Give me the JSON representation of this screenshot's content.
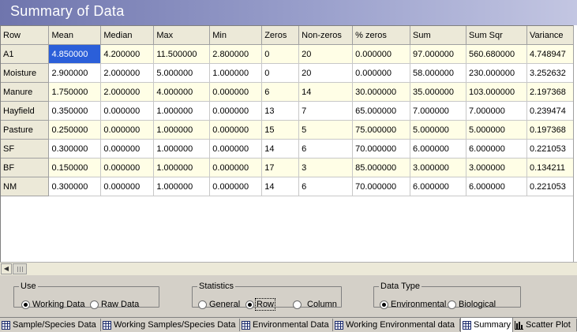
{
  "window": {
    "title": "Summary of Data"
  },
  "table": {
    "columns": [
      "Row",
      "Mean",
      "Median",
      "Max",
      "Min",
      "Zeros",
      "Non-zeros",
      "% zeros",
      "Sum",
      "Sum Sqr",
      "Variance"
    ],
    "rows": [
      [
        "A1",
        "4.850000",
        "4.200000",
        "11.500000",
        "2.800000",
        "0",
        "20",
        "0.000000",
        "97.000000",
        "560.680000",
        "4.748947"
      ],
      [
        "Moisture",
        "2.900000",
        "2.000000",
        "5.000000",
        "1.000000",
        "0",
        "20",
        "0.000000",
        "58.000000",
        "230.000000",
        "3.252632"
      ],
      [
        "Manure",
        "1.750000",
        "2.000000",
        "4.000000",
        "0.000000",
        "6",
        "14",
        "30.000000",
        "35.000000",
        "103.000000",
        "2.197368"
      ],
      [
        "Hayfield",
        "0.350000",
        "0.000000",
        "1.000000",
        "0.000000",
        "13",
        "7",
        "65.000000",
        "7.000000",
        "7.000000",
        "0.239474"
      ],
      [
        "Pasture",
        "0.250000",
        "0.000000",
        "1.000000",
        "0.000000",
        "15",
        "5",
        "75.000000",
        "5.000000",
        "5.000000",
        "0.197368"
      ],
      [
        "SF",
        "0.300000",
        "0.000000",
        "1.000000",
        "0.000000",
        "14",
        "6",
        "70.000000",
        "6.000000",
        "6.000000",
        "0.221053"
      ],
      [
        "BF",
        "0.150000",
        "0.000000",
        "1.000000",
        "0.000000",
        "17",
        "3",
        "85.000000",
        "3.000000",
        "3.000000",
        "0.134211"
      ],
      [
        "NM",
        "0.300000",
        "0.000000",
        "1.000000",
        "0.000000",
        "14",
        "6",
        "70.000000",
        "6.000000",
        "6.000000",
        "0.221053"
      ]
    ]
  },
  "options": {
    "use": {
      "legend": "Use",
      "working": "Working Data",
      "raw": "Raw Data",
      "selected": "working"
    },
    "statistics": {
      "legend": "Statistics",
      "general": "General",
      "row": "Row",
      "column": "Column",
      "selected": "row"
    },
    "datatype": {
      "legend": "Data Type",
      "environmental": "Environmental",
      "biological": "Biological",
      "selected": "environmental"
    }
  },
  "tabs": [
    {
      "label": "Sample/Species Data",
      "icon": "grid-icon"
    },
    {
      "label": "Working Samples/Species Data",
      "icon": "grid-icon"
    },
    {
      "label": "Environmental Data",
      "icon": "grid-icon"
    },
    {
      "label": "Working Environmental data",
      "icon": "grid-icon"
    },
    {
      "label": "Summary",
      "icon": "grid-icon",
      "active": true
    },
    {
      "label": "Scatter Plot",
      "icon": "bar-chart-icon"
    }
  ],
  "colors": {
    "selection": "#2b5fd9",
    "odd_row": "#fffee6",
    "header": "#ece9d8"
  }
}
